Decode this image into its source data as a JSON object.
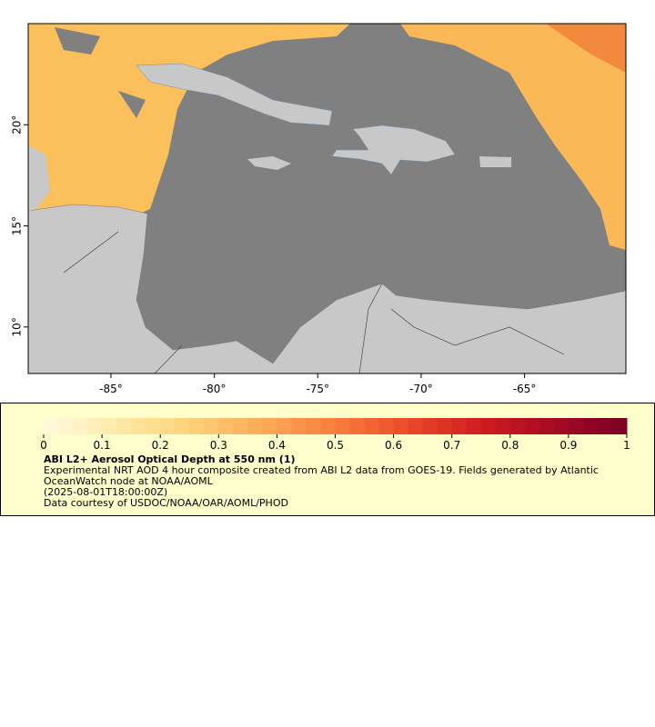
{
  "map": {
    "xlim": [
      -89,
      -60.1
    ],
    "ylim": [
      7.7,
      25
    ],
    "xticks": [
      {
        "value": -85,
        "label": "-85°"
      },
      {
        "value": -80,
        "label": "-80°"
      },
      {
        "value": -75,
        "label": "-75°"
      },
      {
        "value": -70,
        "label": "-70°"
      },
      {
        "value": -65,
        "label": "-65°"
      }
    ],
    "yticks": [
      {
        "value": 10,
        "label": "10°"
      },
      {
        "value": 15,
        "label": "15°"
      },
      {
        "value": 20,
        "label": "20°"
      }
    ]
  },
  "colorbar": {
    "lim": [
      0,
      1
    ],
    "ticks": [
      0,
      0.1,
      0.2,
      0.3,
      0.4,
      0.5,
      0.6,
      0.7,
      0.8,
      0.9,
      1
    ],
    "colors": [
      "#fffbe0",
      "#fee9a8",
      "#fed27a",
      "#fdaa58",
      "#f97d3c",
      "#ea4a2a",
      "#cf1c20",
      "#a50a24",
      "#7a0026"
    ]
  },
  "title": "ABI L2+ Aerosol Optical Depth at 550 nm (1)",
  "description": "Experimental NRT AOD 4 hour composite created from ABI L2 data from GOES-19. Fields generated by Atlantic OceanWatch node at NOAA/AOML",
  "timestamp": "(2025-08-01T18:00:00Z)",
  "credit": "Data courtesy of USDOC/NOAA/OAR/AOML/PHOD"
}
